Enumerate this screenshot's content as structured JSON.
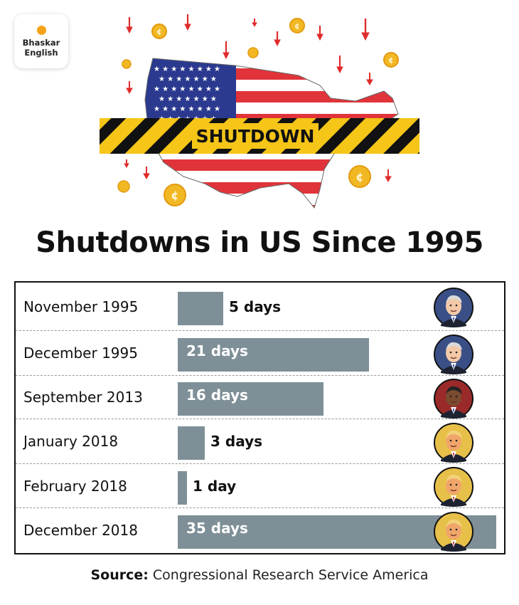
{
  "brand": {
    "line1": "Bhaskar",
    "line2": "English"
  },
  "hero": {
    "banner_text": "SHUTDOWN"
  },
  "chart_data": {
    "type": "bar",
    "orientation": "horizontal",
    "title": "Shutdowns in US Since 1995",
    "categories": [
      "November 1995",
      "December 1995",
      "September 2013",
      "January 2018",
      "February 2018",
      "December 2018"
    ],
    "values": [
      5,
      21,
      16,
      3,
      1,
      35
    ],
    "value_labels": [
      "5 days",
      "21 days",
      "16 days",
      "3 days",
      "1 day",
      "35 days"
    ],
    "unit": "days",
    "xlim": [
      0,
      35
    ],
    "grid": false,
    "bar_color": "#7e8f97",
    "presidents": [
      "clinton",
      "clinton",
      "obama",
      "trump",
      "trump",
      "trump"
    ]
  },
  "source": {
    "label": "Source:",
    "text": "Congressional Research Service America"
  },
  "colors": {
    "accent_yellow": "#f5c518",
    "flag_red": "#e0343a",
    "flag_blue": "#2b3a8f",
    "arrow_red": "#e02b2b",
    "coin_gold": "#f2b824"
  }
}
